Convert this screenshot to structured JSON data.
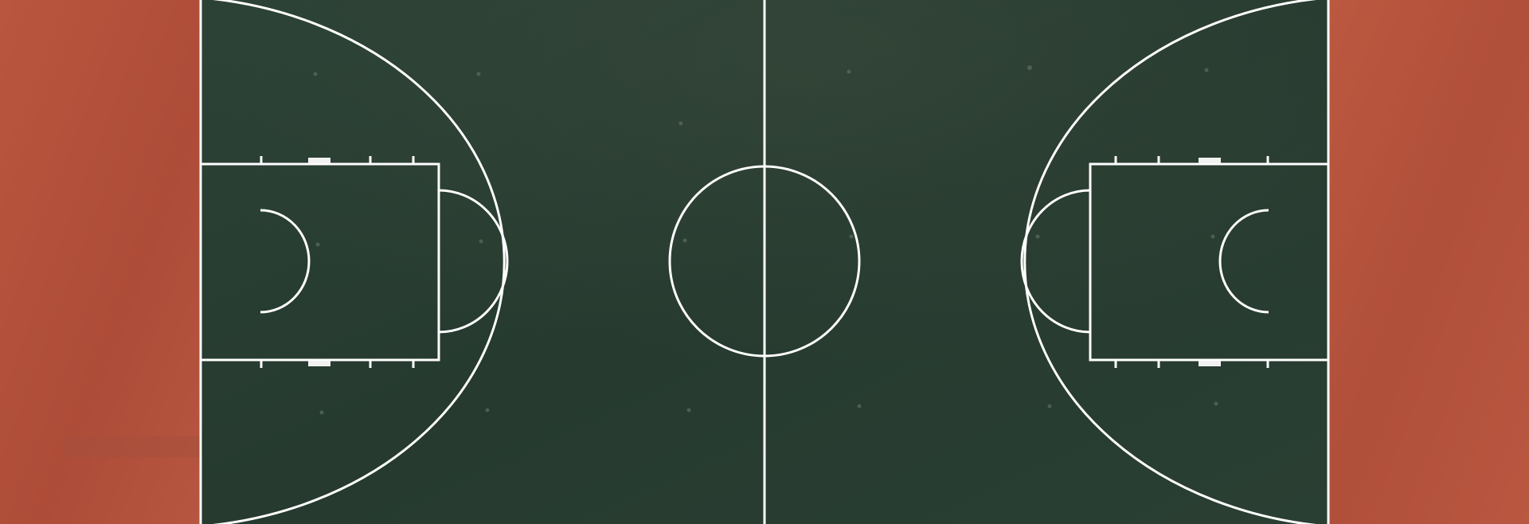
{
  "scene": {
    "subject": "basketball-court-aerial-view",
    "colors": {
      "surround": "#b5513c",
      "surround_dark": "#9e4532",
      "court": "#2a3e33",
      "court_dark": "#223428",
      "court_light": "#33493c",
      "lines": "#ffffff",
      "markers": "#f2f2f2"
    }
  }
}
